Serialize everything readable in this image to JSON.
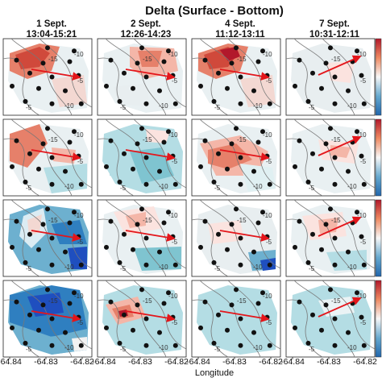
{
  "figure": {
    "title": "Delta (Surface - Bottom)",
    "xlabel": "Longitude"
  },
  "chart_data": {
    "type": "heatmap",
    "title": "Delta (Surface - Bottom)",
    "xlabel": "Longitude",
    "ylabel": "",
    "xticks": [
      "-64.84",
      "-64.83",
      "-64.82"
    ],
    "xlim": [
      -64.845,
      -64.815
    ],
    "columns": [
      {
        "day": "1 Sept.",
        "time": "13:04-15:21"
      },
      {
        "day": "2 Sept.",
        "time": "12:26-14:23"
      },
      {
        "day": "4 Sept.",
        "time": "11:12-13:11"
      },
      {
        "day": "7 Sept.",
        "time": "10:31-12:11"
      }
    ],
    "rows": 4,
    "contour_labels": [
      "-5",
      "-10",
      "-15"
    ],
    "colorbar": {
      "colors": [
        "#b2182b",
        "#f7f7f7",
        "#2166ac"
      ],
      "ticks_shown": false
    },
    "station_grid": [
      [
        0.5,
        0.12
      ],
      [
        0.8,
        0.16
      ],
      [
        0.15,
        0.28
      ],
      [
        0.45,
        0.32
      ],
      [
        0.75,
        0.3
      ],
      [
        0.3,
        0.45
      ],
      [
        0.55,
        0.5
      ],
      [
        0.85,
        0.48
      ],
      [
        0.1,
        0.62
      ],
      [
        0.4,
        0.65
      ],
      [
        0.7,
        0.68
      ],
      [
        0.25,
        0.82
      ],
      [
        0.55,
        0.85
      ],
      [
        0.88,
        0.85
      ]
    ],
    "panels": [
      [
        {
          "pattern": "red-north",
          "intensity": 0.85
        },
        {
          "pattern": "mix-red-light",
          "intensity": 0.4
        },
        {
          "pattern": "red-north-strong",
          "intensity": 0.9
        },
        {
          "pattern": "light-mix",
          "intensity": 0.25
        }
      ],
      [
        {
          "pattern": "red-west-teal-south",
          "intensity": 0.6
        },
        {
          "pattern": "teal-mix",
          "intensity": 0.5
        },
        {
          "pattern": "red-central",
          "intensity": 0.75
        },
        {
          "pattern": "red-light",
          "intensity": 0.35
        }
      ],
      [
        {
          "pattern": "blue-strong",
          "intensity": 0.9
        },
        {
          "pattern": "red-north-teal-south",
          "intensity": 0.55
        },
        {
          "pattern": "light-red-blue-south",
          "intensity": 0.45
        },
        {
          "pattern": "red-light-teal-south",
          "intensity": 0.4
        }
      ],
      [
        {
          "pattern": "blue-strong-2",
          "intensity": 0.85
        },
        {
          "pattern": "teal-red-center",
          "intensity": 0.7
        },
        {
          "pattern": "teal-uniform",
          "intensity": 0.6
        },
        {
          "pattern": "teal-uniform-light",
          "intensity": 0.5
        }
      ]
    ],
    "arrow": {
      "color": "#e3161b"
    }
  }
}
